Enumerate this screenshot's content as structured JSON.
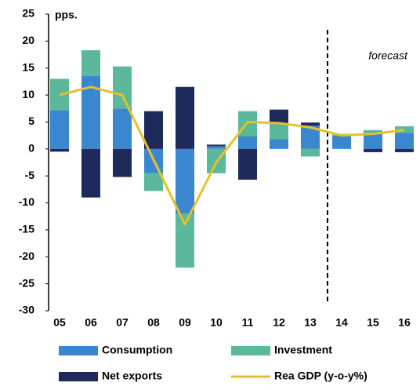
{
  "chart_data": {
    "type": "bar",
    "stacked": true,
    "y_unit_label": "pps.",
    "annotation": "forecast",
    "categories": [
      "05",
      "06",
      "07",
      "08",
      "09",
      "10",
      "11",
      "12",
      "13",
      "14",
      "15",
      "16"
    ],
    "series": [
      {
        "name": "Consumption",
        "color": "#3a87d0",
        "values": [
          7.2,
          13.5,
          7.5,
          -4.5,
          -12,
          0.5,
          2.3,
          1.8,
          4.3,
          2.5,
          3,
          3
        ]
      },
      {
        "name": "Investment",
        "color": "#5bb89a",
        "values": [
          5.8,
          4.8,
          7.8,
          -3.3,
          -10,
          -4.5,
          4.7,
          3,
          -1.4,
          0.3,
          0.5,
          1.2
        ]
      },
      {
        "name": "Net exports",
        "color": "#1f2a5c",
        "values": [
          -0.5,
          -9,
          -5.2,
          7,
          11.5,
          0.3,
          -5.7,
          2.5,
          0.6,
          0,
          -0.6,
          -0.6
        ]
      },
      {
        "name": "Rea GDP (y-o-y%)",
        "type": "line",
        "color": "#e5c12a",
        "values": [
          10,
          11.5,
          10,
          -2,
          -14,
          -2.5,
          5,
          4.8,
          4,
          2.5,
          2.8,
          3.5
        ]
      }
    ],
    "ylim": [
      -30,
      25
    ],
    "yticks": [
      -30,
      -25,
      -20,
      -15,
      -10,
      -5,
      0,
      5,
      10,
      15,
      20,
      25
    ],
    "grid": false
  }
}
